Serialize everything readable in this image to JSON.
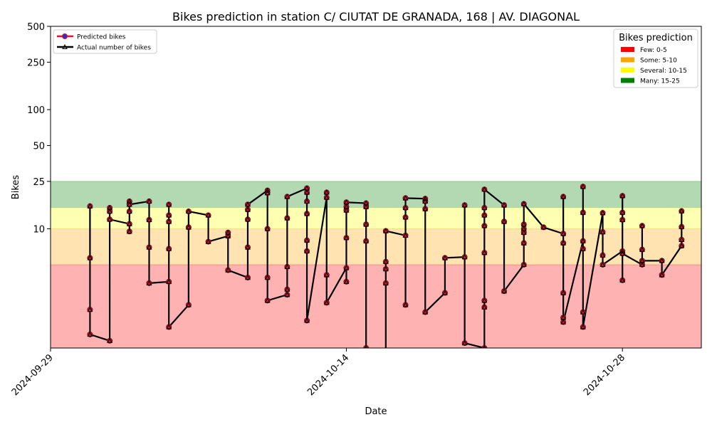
{
  "chart_data": {
    "type": "line",
    "title": "Bikes prediction in station C/ CIUTAT DE GRANADA, 168 | AV. DIAGONAL",
    "x_label": "Date",
    "y_label": "Bikes",
    "log_scale": true,
    "ylim": [
      1,
      500
    ],
    "yticks": [
      10,
      25,
      50,
      100,
      250,
      500
    ],
    "xlim": [
      "2024-09-29",
      "2024-11-01"
    ],
    "xticks": [
      "2024-09-29",
      "2024-10-14",
      "2024-10-28"
    ],
    "legend_position": "upper left",
    "bands_title": "Bikes prediction",
    "bands_position": "upper right",
    "bands": [
      {
        "label": "Few: 0-5",
        "from": 0,
        "to": 5,
        "color": "#ff0000"
      },
      {
        "label": "Some: 5-10",
        "from": 5,
        "to": 10,
        "color": "#ffa500"
      },
      {
        "label": "Several: 10-15",
        "from": 10,
        "to": 15,
        "color": "#ffff00"
      },
      {
        "label": "Many: 15-25",
        "from": 15,
        "to": 25,
        "color": "#008000"
      }
    ],
    "x": [
      "2024-10-01",
      "2024-10-01",
      "2024-10-01",
      "2024-10-01",
      "2024-10-02",
      "2024-10-02",
      "2024-10-02",
      "2024-10-02",
      "2024-10-03",
      "2024-10-03",
      "2024-10-03",
      "2024-10-03",
      "2024-10-03",
      "2024-10-04",
      "2024-10-04",
      "2024-10-04",
      "2024-10-04",
      "2024-10-05",
      "2024-10-05",
      "2024-10-05",
      "2024-10-05",
      "2024-10-05",
      "2024-10-05",
      "2024-10-06",
      "2024-10-06",
      "2024-10-06",
      "2024-10-07",
      "2024-10-07",
      "2024-10-08",
      "2024-10-08",
      "2024-10-08",
      "2024-10-09",
      "2024-10-09",
      "2024-10-09",
      "2024-10-09",
      "2024-10-09",
      "2024-10-10",
      "2024-10-10",
      "2024-10-10",
      "2024-10-10",
      "2024-10-10",
      "2024-10-11",
      "2024-10-11",
      "2024-10-11",
      "2024-10-11",
      "2024-10-11",
      "2024-10-12",
      "2024-10-12",
      "2024-10-12",
      "2024-10-12",
      "2024-10-12",
      "2024-10-12",
      "2024-10-12",
      "2024-10-13",
      "2024-10-13",
      "2024-10-13",
      "2024-10-13",
      "2024-10-14",
      "2024-10-14",
      "2024-10-14",
      "2024-10-14",
      "2024-10-14",
      "2024-10-14",
      "2024-10-15",
      "2024-10-15",
      "2024-10-15",
      "2024-10-15",
      "2024-10-15",
      "2024-10-16",
      "2024-10-16",
      "2024-10-16",
      "2024-10-16",
      "2024-10-16",
      "2024-10-17",
      "2024-10-17",
      "2024-10-17",
      "2024-10-17",
      "2024-10-17",
      "2024-10-18",
      "2024-10-18",
      "2024-10-18",
      "2024-10-18",
      "2024-10-19",
      "2024-10-19",
      "2024-10-20",
      "2024-10-20",
      "2024-10-20",
      "2024-10-21",
      "2024-10-21",
      "2024-10-21",
      "2024-10-21",
      "2024-10-21",
      "2024-10-21",
      "2024-10-21",
      "2024-10-21",
      "2024-10-22",
      "2024-10-22",
      "2024-10-22",
      "2024-10-23",
      "2024-10-23",
      "2024-10-23",
      "2024-10-23",
      "2024-10-23",
      "2024-10-23",
      "2024-10-24",
      "2024-10-25",
      "2024-10-25",
      "2024-10-25",
      "2024-10-25",
      "2024-10-25",
      "2024-10-25",
      "2024-10-26",
      "2024-10-26",
      "2024-10-26",
      "2024-10-26",
      "2024-10-26",
      "2024-10-26",
      "2024-10-27",
      "2024-10-27",
      "2024-10-27",
      "2024-10-27",
      "2024-10-28",
      "2024-10-28",
      "2024-10-28",
      "2024-10-28",
      "2024-10-28",
      "2024-10-28",
      "2024-10-29",
      "2024-10-29",
      "2024-10-29",
      "2024-10-29",
      "2024-10-30",
      "2024-10-30",
      "2024-10-31",
      "2024-10-31",
      "2024-10-31",
      "2024-10-31"
    ],
    "series": [
      {
        "name": "Predicted bikes",
        "color": "#e8102f",
        "marker": "circle",
        "values": [
          15.5,
          5.7,
          2.1,
          1.3,
          1.15,
          15,
          14,
          12,
          11,
          9.5,
          14,
          17,
          16,
          17,
          11.9,
          7,
          3.5,
          3.6,
          16,
          13,
          11.5,
          6.8,
          1.5,
          2.3,
          10.3,
          14,
          13,
          7.8,
          8.7,
          9.3,
          4.5,
          3.9,
          7,
          12,
          14.5,
          16,
          21,
          20,
          10,
          3.9,
          2.5,
          2.8,
          3.1,
          4.8,
          12.3,
          18.6,
          21.9,
          20.2,
          17,
          13.4,
          8,
          6.5,
          1.7,
          18.3,
          20.2,
          4.1,
          2.4,
          4.7,
          3.6,
          8.4,
          14.3,
          15.3,
          16.7,
          16.4,
          15.3,
          10.9,
          7.9,
          1,
          0.9,
          3.5,
          4.6,
          5.3,
          9.6,
          8.8,
          2.3,
          12.5,
          15,
          18.1,
          17.9,
          17,
          14.7,
          2,
          2.9,
          5.7,
          5.8,
          15.8,
          1.1,
          1,
          2.2,
          2.5,
          6.3,
          10.6,
          13,
          15,
          21.4,
          15.8,
          11.5,
          3,
          5,
          7.6,
          9.3,
          10,
          10.9,
          16.2,
          10.3,
          9.1,
          18.6,
          7.6,
          2.9,
          1.8,
          1.65,
          7.9,
          22.6,
          13.7,
          6.8,
          2,
          1.5,
          13.6,
          9.4,
          6,
          5,
          6.5,
          18.9,
          13.7,
          11.9,
          3.7,
          6.2,
          5,
          10.6,
          6.7,
          5.4,
          5.4,
          4.1,
          7.2,
          8.1,
          10.4,
          14.1
        ]
      },
      {
        "name": "Actual number of bikes",
        "color": "#000000",
        "marker": "triangle",
        "values": [
          15.5,
          5.7,
          2.1,
          1.3,
          1.15,
          15,
          14,
          12,
          11,
          9.5,
          14,
          17,
          16,
          17,
          11.9,
          7,
          3.5,
          3.6,
          16,
          13,
          11.5,
          6.8,
          1.5,
          2.3,
          10.3,
          14,
          13,
          7.8,
          8.7,
          9.3,
          4.5,
          3.9,
          7,
          12,
          14.5,
          16,
          21,
          20,
          10,
          3.9,
          2.5,
          2.8,
          3.1,
          4.8,
          12.3,
          18.6,
          21.9,
          20.2,
          17,
          13.4,
          8,
          6.5,
          1.7,
          18.3,
          20.2,
          4.1,
          2.4,
          4.7,
          3.6,
          8.4,
          14.3,
          15.3,
          16.7,
          16.4,
          15.3,
          10.9,
          7.9,
          1,
          0.9,
          3.5,
          4.6,
          5.3,
          9.6,
          8.8,
          2.3,
          12.5,
          15,
          18.1,
          17.9,
          17,
          14.7,
          2,
          2.9,
          5.7,
          5.8,
          15.8,
          1.1,
          1,
          2.2,
          2.5,
          6.3,
          10.6,
          13,
          15,
          21.4,
          15.8,
          11.5,
          3,
          5,
          7.6,
          9.3,
          10,
          10.9,
          16.2,
          10.3,
          9.1,
          18.6,
          7.6,
          2.9,
          1.8,
          1.65,
          7.9,
          22.6,
          13.7,
          6.8,
          2,
          1.5,
          13.6,
          9.4,
          6,
          5,
          6.5,
          18.9,
          13.7,
          11.9,
          3.7,
          6.2,
          5,
          10.6,
          6.7,
          5.4,
          5.4,
          4.1,
          7.2,
          8.1,
          10.4,
          14.1
        ]
      }
    ]
  }
}
